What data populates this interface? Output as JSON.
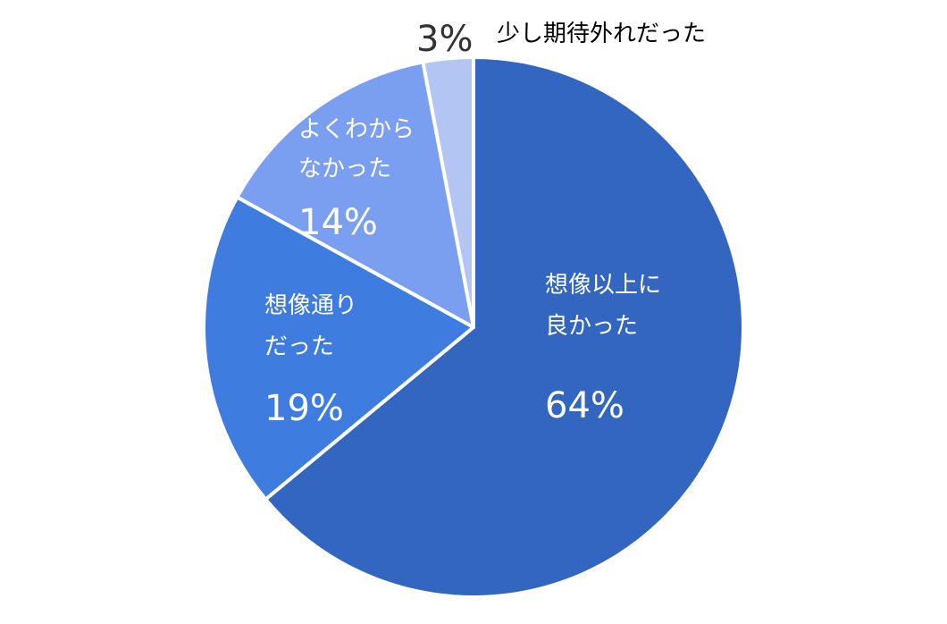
{
  "chart_data": {
    "type": "pie",
    "title": "",
    "slices": [
      {
        "label_lines": [
          "想像以上に",
          "良かった"
        ],
        "value": 64,
        "value_label": "64%",
        "color": "#3366c0",
        "label_inside": true,
        "label_color": "#ffffff"
      },
      {
        "label_lines": [
          "想像通り",
          "だった"
        ],
        "value": 19,
        "value_label": "19%",
        "color": "#3f7ce0",
        "label_inside": true,
        "label_color": "#ffffff"
      },
      {
        "label_lines": [
          "よくわから",
          "なかった"
        ],
        "value": 14,
        "value_label": "14%",
        "color": "#7b9ff0",
        "label_inside": true,
        "label_color": "#ffffff"
      },
      {
        "label_lines": [
          "少し期待外れだった"
        ],
        "value": 3,
        "value_label": "3%",
        "color": "#b3c6f3",
        "label_inside": false,
        "label_color": "#333333"
      }
    ],
    "start": "12 o'clock",
    "direction": "clockwise",
    "legend": "none"
  }
}
